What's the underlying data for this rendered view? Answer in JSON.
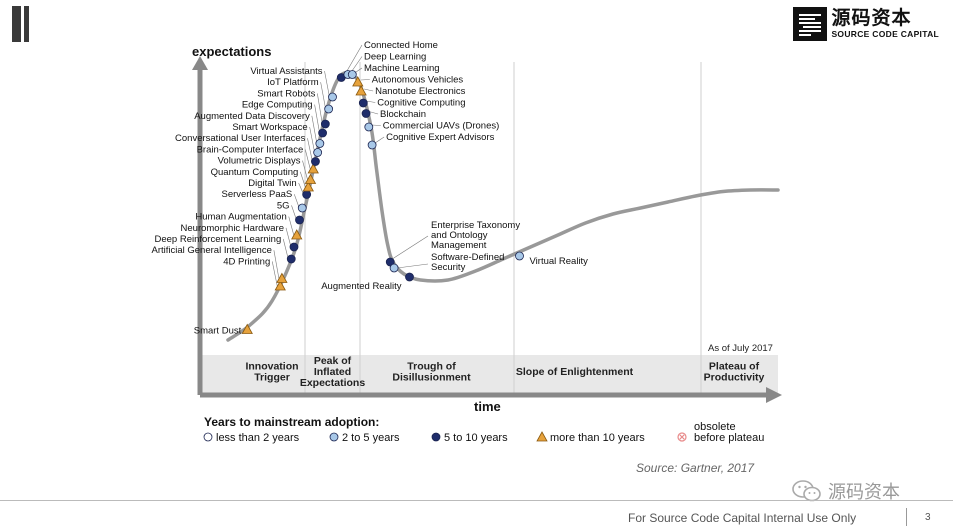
{
  "header": {
    "logo_cn": "源码资本",
    "logo_en": "SOURCE CODE CAPITAL"
  },
  "chart_data": {
    "type": "hype-cycle",
    "y_label": "expectations",
    "x_label": "time",
    "as_of": "As of July 2017",
    "phases": [
      {
        "id": "innovation",
        "label": [
          "Innovation",
          "Trigger"
        ],
        "x": 8
      },
      {
        "id": "peak",
        "label": [
          "Peak of",
          "Inflated",
          "Expectations"
        ],
        "x": 19
      },
      {
        "id": "trough",
        "label": [
          "Trough of",
          "Disillusionment"
        ],
        "x": 37
      },
      {
        "id": "slope",
        "label": [
          "Slope of Enlightenment"
        ],
        "x": 63
      },
      {
        "id": "plateau",
        "label": [
          "Plateau of",
          "Productivity"
        ],
        "x": 92
      }
    ],
    "phase_boundaries": [
      14,
      24,
      52,
      86
    ],
    "curve": [
      [
        0,
        1
      ],
      [
        4,
        6
      ],
      [
        8,
        14
      ],
      [
        12,
        30
      ],
      [
        14,
        45
      ],
      [
        16,
        62
      ],
      [
        18,
        78
      ],
      [
        20,
        88
      ],
      [
        22,
        90
      ],
      [
        24,
        86
      ],
      [
        26,
        72
      ],
      [
        27,
        58
      ],
      [
        28,
        44
      ],
      [
        29,
        33
      ],
      [
        30,
        27
      ],
      [
        32,
        23
      ],
      [
        35,
        21
      ],
      [
        40,
        21
      ],
      [
        45,
        24
      ],
      [
        50,
        28
      ],
      [
        55,
        32
      ],
      [
        60,
        36
      ],
      [
        65,
        40
      ],
      [
        70,
        43
      ],
      [
        75,
        45
      ],
      [
        80,
        47
      ],
      [
        85,
        49
      ],
      [
        90,
        50.5
      ],
      [
        95,
        51
      ],
      [
        100,
        51
      ]
    ],
    "technologies": [
      {
        "name": "Smart Dust",
        "x": 3.5,
        "y": 4.5,
        "cat": "more",
        "side": "left"
      },
      {
        "name": "4D Printing",
        "x": 9.5,
        "y": 19,
        "cat": "more",
        "side": "left"
      },
      {
        "name": "Artificial General Intelligence",
        "x": 9.8,
        "y": 21.5,
        "cat": "more",
        "side": "left"
      },
      {
        "name": "Deep Reinforcement Learning",
        "x": 11.5,
        "y": 28,
        "cat": "5to10",
        "side": "left"
      },
      {
        "name": "Neuromorphic Hardware",
        "x": 12,
        "y": 32,
        "cat": "5to10",
        "side": "left"
      },
      {
        "name": "Human Augmentation",
        "x": 12.5,
        "y": 36,
        "cat": "more",
        "side": "left"
      },
      {
        "name": "5G",
        "x": 13,
        "y": 41,
        "cat": "5to10",
        "side": "left"
      },
      {
        "name": "Serverless PaaS",
        "x": 13.5,
        "y": 45,
        "cat": "2to5",
        "side": "left"
      },
      {
        "name": "Digital Twin",
        "x": 14.3,
        "y": 49.5,
        "cat": "5to10",
        "side": "left"
      },
      {
        "name": "Quantum Computing",
        "x": 14.6,
        "y": 52,
        "cat": "more",
        "side": "left"
      },
      {
        "name": "Volumetric Displays",
        "x": 15,
        "y": 54.5,
        "cat": "more",
        "side": "left"
      },
      {
        "name": "Brain-Computer Interface",
        "x": 15.5,
        "y": 58,
        "cat": "more",
        "side": "left"
      },
      {
        "name": "Conversational User Interfaces",
        "x": 15.9,
        "y": 60.5,
        "cat": "5to10",
        "side": "left"
      },
      {
        "name": "Smart Workspace",
        "x": 16.3,
        "y": 63.5,
        "cat": "2to5",
        "side": "left"
      },
      {
        "name": "Augmented Data Discovery",
        "x": 16.7,
        "y": 66.5,
        "cat": "2to5",
        "side": "left"
      },
      {
        "name": "Edge Computing",
        "x": 17.2,
        "y": 70,
        "cat": "5to10",
        "side": "left"
      },
      {
        "name": "Smart Robots",
        "x": 17.7,
        "y": 73,
        "cat": "5to10",
        "side": "left"
      },
      {
        "name": "IoT Platform",
        "x": 18.3,
        "y": 78,
        "cat": "2to5",
        "side": "left"
      },
      {
        "name": "Virtual Assistants",
        "x": 19,
        "y": 82,
        "cat": "2to5",
        "side": "left"
      },
      {
        "name": "Connected Home",
        "x": 20.6,
        "y": 88.5,
        "cat": "5to10",
        "side": "right"
      },
      {
        "name": "Deep Learning",
        "x": 21.8,
        "y": 89.5,
        "cat": "2to5",
        "side": "right"
      },
      {
        "name": "Machine Learning",
        "x": 22.6,
        "y": 89.5,
        "cat": "2to5",
        "side": "right"
      },
      {
        "name": "Autonomous Vehicles",
        "x": 23.6,
        "y": 87,
        "cat": "more",
        "side": "right"
      },
      {
        "name": "Nanotube Electronics",
        "x": 24.2,
        "y": 84,
        "cat": "more",
        "side": "right"
      },
      {
        "name": "Cognitive Computing",
        "x": 24.6,
        "y": 80,
        "cat": "5to10",
        "side": "right"
      },
      {
        "name": "Blockchain",
        "x": 25.1,
        "y": 76.5,
        "cat": "5to10",
        "side": "right"
      },
      {
        "name": "Commercial UAVs (Drones)",
        "x": 25.6,
        "y": 72,
        "cat": "2to5",
        "side": "right"
      },
      {
        "name": "Cognitive Expert Advisors",
        "x": 26.2,
        "y": 66,
        "cat": "2to5",
        "side": "right"
      },
      {
        "name": "Enterprise Taxonomy and Ontology Management",
        "x": 29.5,
        "y": 27,
        "cat": "5to10",
        "side": "right"
      },
      {
        "name": "Software-Defined Security",
        "x": 30.2,
        "y": 25,
        "cat": "2to5",
        "side": "right"
      },
      {
        "name": "Augmented Reality",
        "x": 33,
        "y": 22,
        "cat": "5to10",
        "side": "left"
      },
      {
        "name": "Virtual Reality",
        "x": 53,
        "y": 29,
        "cat": "2to5",
        "side": "right"
      }
    ],
    "legend": {
      "title": "Years to mainstream adoption:",
      "items": [
        {
          "cat": "less",
          "label": "less than 2 years"
        },
        {
          "cat": "2to5",
          "label": "2 to 5 years"
        },
        {
          "cat": "5to10",
          "label": "5 to 10 years"
        },
        {
          "cat": "more",
          "label": "more than 10 years"
        },
        {
          "cat": "obsolete",
          "label": "obsolete before plateau"
        }
      ]
    },
    "colors": {
      "curve": "#999999",
      "less": "#ffffff",
      "2to5": "#a8c8e8",
      "5to10": "#1f2d6b",
      "more": "#e6a23c",
      "obsolete": "#e88a8a",
      "phase_bar": "#e8e8e8",
      "axis": "#888888"
    }
  },
  "source": "Source: Gartner,  2017",
  "watermark": "源码资本",
  "footer": {
    "text": "For Source Code Capital Internal Use Only",
    "page": "3"
  }
}
